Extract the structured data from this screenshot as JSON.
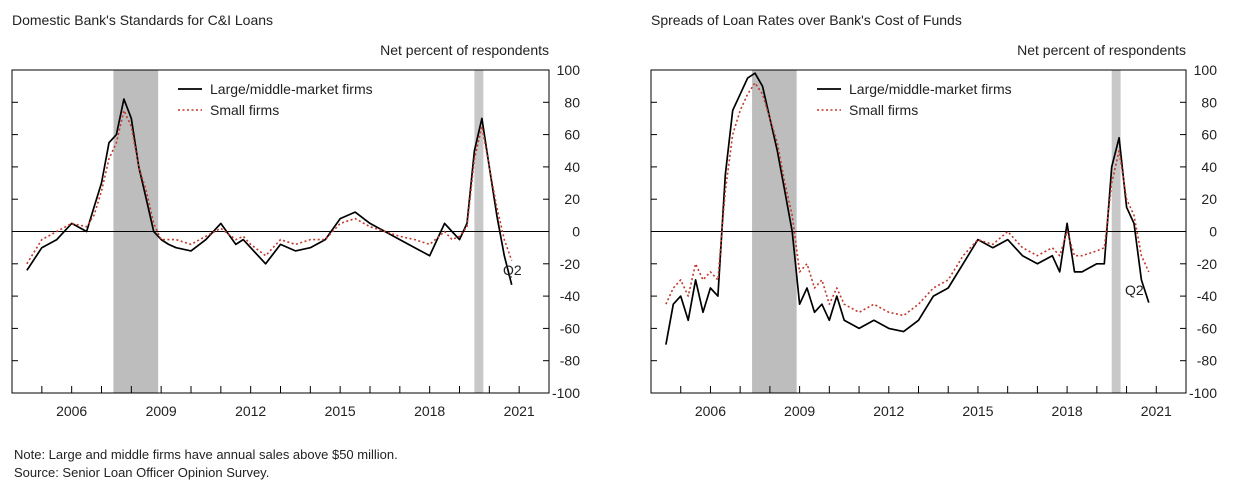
{
  "chart_data": [
    {
      "type": "line",
      "title": "Domestic Bank's Standards for C&I Loans",
      "ylabel": "Net percent of respondents",
      "ylim": [
        -100,
        100
      ],
      "yticks": [
        100,
        80,
        60,
        40,
        20,
        0,
        -20,
        -40,
        -60,
        -80,
        -100
      ],
      "xlim": [
        2004.5,
        2022.5
      ],
      "xticks": [
        "2006",
        "2009",
        "2012",
        "2015",
        "2018",
        "2021"
      ],
      "recessions": [
        [
          2007.9,
          2009.4
        ],
        [
          2020.0,
          2020.3
        ]
      ],
      "legend_position": "top-center",
      "annotation": "Q2",
      "series": [
        {
          "name": "Large/middle-market firms",
          "color": "#000000",
          "style": "solid",
          "x": [
            2005.0,
            2005.5,
            2006.0,
            2006.5,
            2007.0,
            2007.25,
            2007.5,
            2007.75,
            2008.0,
            2008.25,
            2008.5,
            2008.75,
            2009.0,
            2009.25,
            2009.5,
            2009.75,
            2010.0,
            2010.5,
            2011.0,
            2011.5,
            2012.0,
            2012.25,
            2012.5,
            2013.0,
            2013.5,
            2014.0,
            2014.5,
            2015.0,
            2015.5,
            2016.0,
            2016.5,
            2017.0,
            2017.5,
            2018.0,
            2018.5,
            2019.0,
            2019.25,
            2019.5,
            2019.75,
            2020.0,
            2020.25,
            2020.5,
            2020.75,
            2021.0,
            2021.25
          ],
          "y": [
            -24,
            -10,
            -5,
            5,
            0,
            15,
            30,
            55,
            60,
            82,
            70,
            40,
            20,
            0,
            -5,
            -8,
            -10,
            -12,
            -5,
            5,
            -8,
            -5,
            -10,
            -20,
            -8,
            -12,
            -10,
            -5,
            8,
            12,
            5,
            0,
            -5,
            -10,
            -15,
            5,
            0,
            -5,
            5,
            50,
            70,
            40,
            10,
            -15,
            -33
          ]
        },
        {
          "name": "Small firms",
          "color": "#c0392b",
          "style": "dotted",
          "x": [
            2005.0,
            2005.5,
            2006.0,
            2006.5,
            2007.0,
            2007.25,
            2007.5,
            2007.75,
            2008.0,
            2008.25,
            2008.5,
            2008.75,
            2009.0,
            2009.25,
            2009.5,
            2009.75,
            2010.0,
            2010.5,
            2011.0,
            2011.5,
            2012.0,
            2012.25,
            2012.5,
            2013.0,
            2013.5,
            2014.0,
            2014.5,
            2015.0,
            2015.5,
            2016.0,
            2016.5,
            2017.0,
            2017.5,
            2018.0,
            2018.5,
            2019.0,
            2019.25,
            2019.5,
            2019.75,
            2020.0,
            2020.25,
            2020.5,
            2020.75,
            2021.0,
            2021.25
          ],
          "y": [
            -20,
            -5,
            0,
            5,
            3,
            10,
            25,
            45,
            55,
            75,
            65,
            40,
            25,
            5,
            -5,
            -5,
            -5,
            -8,
            -3,
            2,
            -5,
            -3,
            -8,
            -15,
            -5,
            -8,
            -5,
            -5,
            5,
            8,
            3,
            0,
            -3,
            -5,
            -8,
            0,
            -5,
            -3,
            3,
            45,
            65,
            40,
            15,
            -5,
            -18
          ]
        }
      ]
    },
    {
      "type": "line",
      "title": "Spreads of Loan Rates over Bank's Cost of Funds",
      "ylabel": "Net percent of respondents",
      "ylim": [
        -100,
        100
      ],
      "yticks": [
        100,
        80,
        60,
        40,
        20,
        0,
        -20,
        -40,
        -60,
        -80,
        -100
      ],
      "xlim": [
        2004.5,
        2022.5
      ],
      "xticks": [
        "2006",
        "2009",
        "2012",
        "2015",
        "2018",
        "2021"
      ],
      "recessions": [
        [
          2007.9,
          2009.4
        ],
        [
          2020.0,
          2020.3
        ]
      ],
      "legend_position": "top-center",
      "annotation": "Q2",
      "series": [
        {
          "name": "Large/middle-market firms",
          "color": "#000000",
          "style": "solid",
          "x": [
            2005.0,
            2005.25,
            2005.5,
            2005.75,
            2006.0,
            2006.25,
            2006.5,
            2006.75,
            2007.0,
            2007.25,
            2007.5,
            2007.75,
            2008.0,
            2008.25,
            2008.5,
            2008.75,
            2009.0,
            2009.25,
            2009.5,
            2009.75,
            2010.0,
            2010.25,
            2010.5,
            2010.75,
            2011.0,
            2011.5,
            2012.0,
            2012.5,
            2013.0,
            2013.5,
            2014.0,
            2014.5,
            2015.0,
            2015.5,
            2016.0,
            2016.5,
            2017.0,
            2017.5,
            2018.0,
            2018.25,
            2018.5,
            2018.75,
            2019.0,
            2019.5,
            2019.75,
            2020.0,
            2020.25,
            2020.5,
            2020.75,
            2021.0,
            2021.25
          ],
          "y": [
            -70,
            -45,
            -40,
            -55,
            -30,
            -50,
            -35,
            -40,
            35,
            75,
            85,
            95,
            98,
            90,
            70,
            50,
            25,
            0,
            -45,
            -35,
            -50,
            -45,
            -55,
            -40,
            -55,
            -60,
            -55,
            -60,
            -62,
            -55,
            -40,
            -35,
            -20,
            -5,
            -10,
            -5,
            -15,
            -20,
            -15,
            -25,
            5,
            -25,
            -25,
            -20,
            -20,
            40,
            58,
            15,
            5,
            -30,
            -44
          ]
        },
        {
          "name": "Small firms",
          "color": "#c0392b",
          "style": "dotted",
          "x": [
            2005.0,
            2005.25,
            2005.5,
            2005.75,
            2006.0,
            2006.25,
            2006.5,
            2006.75,
            2007.0,
            2007.25,
            2007.5,
            2007.75,
            2008.0,
            2008.25,
            2008.5,
            2008.75,
            2009.0,
            2009.25,
            2009.5,
            2009.75,
            2010.0,
            2010.25,
            2010.5,
            2010.75,
            2011.0,
            2011.5,
            2012.0,
            2012.5,
            2013.0,
            2013.5,
            2014.0,
            2014.5,
            2015.0,
            2015.5,
            2016.0,
            2016.5,
            2017.0,
            2017.5,
            2018.0,
            2018.25,
            2018.5,
            2018.75,
            2019.0,
            2019.5,
            2019.75,
            2020.0,
            2020.25,
            2020.5,
            2020.75,
            2021.0,
            2021.25
          ],
          "y": [
            -45,
            -35,
            -30,
            -40,
            -20,
            -30,
            -25,
            -30,
            25,
            60,
            75,
            85,
            92,
            85,
            70,
            55,
            30,
            10,
            -25,
            -20,
            -35,
            -30,
            -45,
            -35,
            -45,
            -50,
            -45,
            -50,
            -52,
            -45,
            -35,
            -30,
            -15,
            -5,
            -8,
            0,
            -10,
            -15,
            -10,
            -15,
            0,
            -15,
            -15,
            -12,
            -10,
            30,
            50,
            20,
            10,
            -15,
            -25
          ]
        }
      ]
    }
  ],
  "notes": {
    "note": "Note: Large and middle firms have annual sales above $50 million.",
    "source": "Source: Senior Loan Officer Opinion Survey."
  }
}
